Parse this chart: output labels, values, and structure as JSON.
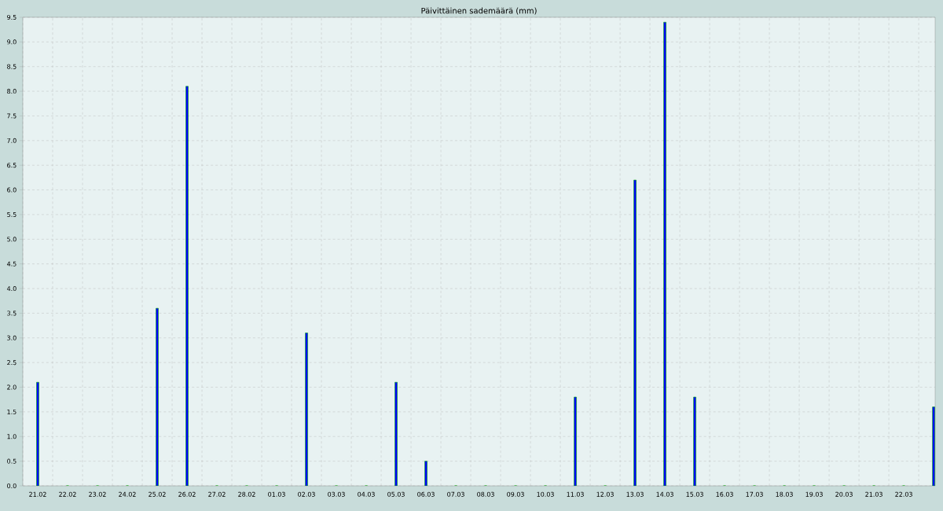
{
  "chart_data": {
    "type": "bar",
    "title": "Päivittäinen sademäärä (mm)",
    "categories": [
      "21.02",
      "22.02",
      "23.02",
      "24.02",
      "25.02",
      "26.02",
      "27.02",
      "28.02",
      "01.03",
      "02.03",
      "03.03",
      "04.03",
      "05.03",
      "06.03",
      "07.03",
      "08.03",
      "09.03",
      "10.03",
      "11.03",
      "12.03",
      "13.03",
      "14.03",
      "15.03",
      "16.03",
      "17.03",
      "18.03",
      "19.03",
      "20.03",
      "21.03",
      "22.03",
      null
    ],
    "values": [
      2.1,
      0,
      0,
      0,
      3.6,
      8.1,
      0,
      0,
      0,
      3.1,
      0,
      0,
      2.1,
      0.5,
      0,
      0,
      0,
      0,
      1.8,
      0,
      6.2,
      9.4,
      1.8,
      0,
      0,
      0,
      0,
      0,
      0,
      0,
      1.6
    ],
    "color": "#0000ff",
    "ylim": [
      0,
      9.5
    ],
    "yticks": [
      {
        "value": 0,
        "label": "0.0"
      },
      0.5,
      {
        "value": 1,
        "label": "1.0"
      },
      1.5,
      {
        "value": 2,
        "label": "2.0"
      },
      2.5,
      {
        "value": 3,
        "label": "3.0"
      },
      3.5,
      {
        "value": 4,
        "label": "4.0"
      },
      4.5,
      {
        "value": 5,
        "label": "5.0"
      },
      5.5,
      {
        "value": 6,
        "label": "6.0"
      },
      6.5,
      {
        "value": 7,
        "label": "7.0"
      },
      7.5,
      {
        "value": 8,
        "label": "8.0"
      },
      8.5,
      {
        "value": 9,
        "label": "9.0"
      },
      9.5
    ],
    "grid": true
  }
}
